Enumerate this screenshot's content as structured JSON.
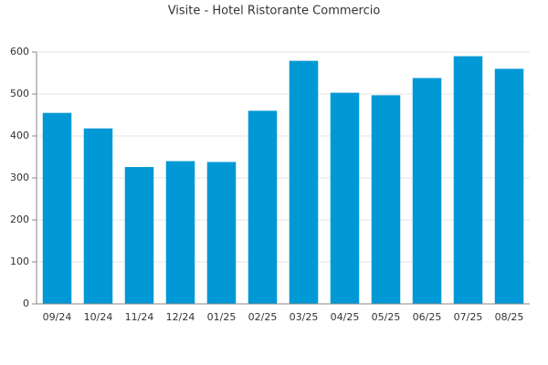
{
  "chart_data": {
    "type": "bar",
    "title": "Visite - Hotel Ristorante Commercio",
    "categories": [
      "09/24",
      "10/24",
      "11/24",
      "12/24",
      "01/25",
      "02/25",
      "03/25",
      "04/25",
      "05/25",
      "06/25",
      "07/25",
      "08/25"
    ],
    "values": [
      455,
      418,
      326,
      340,
      338,
      460,
      579,
      503,
      497,
      538,
      590,
      560
    ],
    "color": "#0098d5",
    "ylim": [
      0,
      600
    ],
    "yticks": [
      0,
      100,
      200,
      300,
      400,
      500,
      600
    ],
    "grid": true
  }
}
